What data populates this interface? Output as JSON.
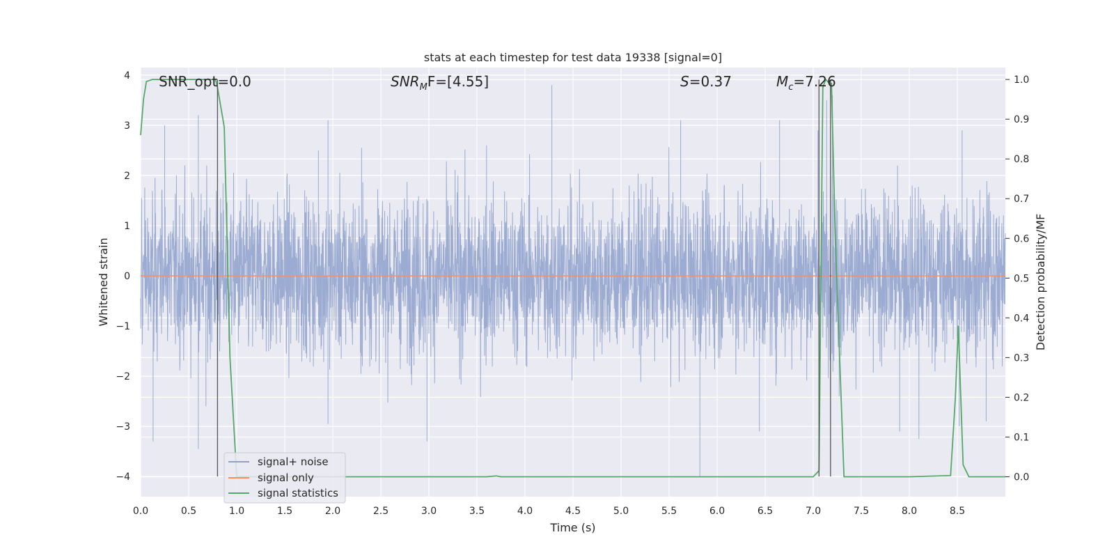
{
  "chart_data": {
    "type": "line",
    "title": "stats at each timestep for test data 19338 [signal=0]",
    "xlabel": "Time (s)",
    "ylabel": "Whitened strain",
    "y2label": "Detection probability/MF",
    "xlim": [
      0.0,
      9.0
    ],
    "ylim": [
      -4.4,
      4.15
    ],
    "y2lim": [
      -0.05,
      1.03
    ],
    "grid": true,
    "legend_loc": "lower left",
    "x_ticks": [
      0.0,
      0.5,
      1.0,
      1.5,
      2.0,
      2.5,
      3.0,
      3.5,
      4.0,
      4.5,
      5.0,
      5.5,
      6.0,
      6.5,
      7.0,
      7.5,
      8.0,
      8.5
    ],
    "x_tick_labels": [
      "0.0",
      "0.5",
      "1.0",
      "1.5",
      "2.0",
      "2.5",
      "3.0",
      "3.5",
      "4.0",
      "4.5",
      "5.0",
      "5.5",
      "6.0",
      "6.5",
      "7.0",
      "7.5",
      "8.0",
      "8.5"
    ],
    "y_ticks": [
      -4,
      -3,
      -2,
      -1,
      0,
      1,
      2,
      3,
      4
    ],
    "y_tick_labels": [
      "−4",
      "−3",
      "−2",
      "−1",
      "0",
      "1",
      "2",
      "3",
      "4"
    ],
    "y2_ticks": [
      0.0,
      0.1,
      0.2,
      0.3,
      0.4,
      0.5,
      0.6,
      0.7,
      0.8,
      0.9,
      1.0
    ],
    "y2_tick_labels": [
      "0.0",
      "0.1",
      "0.2",
      "0.3",
      "0.4",
      "0.5",
      "0.6",
      "0.7",
      "0.8",
      "0.9",
      "1.0"
    ],
    "annotations": {
      "snr_opt": "SNR_opt=0.0",
      "snr_mf_main": "SNR",
      "snr_mf_sub": "M",
      "snr_mf_rest": "F=[4.55]",
      "s_main": "S",
      "s_rest": "=0.37",
      "mc_main": "M",
      "mc_sub": "c",
      "mc_rest": "=7.26"
    },
    "series": [
      {
        "name": "signal+ noise",
        "color": "#8da0cb",
        "axis": "left",
        "description": "dense noisy strain time series",
        "std": 0.8,
        "spikes": [
          [
            0.13,
            -3.3
          ],
          [
            0.25,
            3.0
          ],
          [
            0.6,
            3.2
          ],
          [
            0.6,
            -3.45
          ],
          [
            0.68,
            -2.6
          ],
          [
            1.85,
            2.5
          ],
          [
            1.95,
            3.1
          ],
          [
            1.95,
            -2.95
          ],
          [
            2.3,
            2.55
          ],
          [
            2.98,
            -3.3
          ],
          [
            3.6,
            2.6
          ],
          [
            4.28,
            3.8
          ],
          [
            5.62,
            3.1
          ],
          [
            5.82,
            -4.0
          ],
          [
            6.44,
            -3.1
          ],
          [
            6.65,
            3.1
          ],
          [
            7.05,
            2.9
          ],
          [
            7.14,
            3.5
          ],
          [
            7.2,
            3.6
          ],
          [
            7.27,
            -2.4
          ],
          [
            7.9,
            -3.1
          ],
          [
            8.1,
            -3.25
          ],
          [
            8.52,
            -3.0
          ],
          [
            8.55,
            2.9
          ],
          [
            8.8,
            -2.9
          ]
        ]
      },
      {
        "name": "signal only",
        "color": "#fc8d62",
        "axis": "left",
        "x": [
          0.0,
          9.0
        ],
        "y": [
          0.0,
          0.0
        ]
      },
      {
        "name": "signal statistics",
        "color": "#55a868",
        "axis": "right",
        "x": [
          0.0,
          0.03,
          0.06,
          0.12,
          0.2,
          0.78,
          0.8,
          0.87,
          0.93,
          1.0,
          3.6,
          3.7,
          3.75,
          7.0,
          7.06,
          7.1,
          7.13,
          7.17,
          7.19,
          7.23,
          7.32,
          8.0,
          8.43,
          8.48,
          8.51,
          8.56,
          8.62,
          9.0
        ],
        "y": [
          0.86,
          0.95,
          0.995,
          1.0,
          1.0,
          1.0,
          0.98,
          0.88,
          0.3,
          0.0,
          0.0,
          0.002,
          0.0,
          0.0,
          0.015,
          0.98,
          1.0,
          0.99,
          0.99,
          0.6,
          0.0,
          0.0,
          0.003,
          0.2,
          0.38,
          0.03,
          0.0,
          0.0
        ]
      }
    ],
    "markers_x": [
      0.8,
      7.06,
      7.18
    ]
  }
}
